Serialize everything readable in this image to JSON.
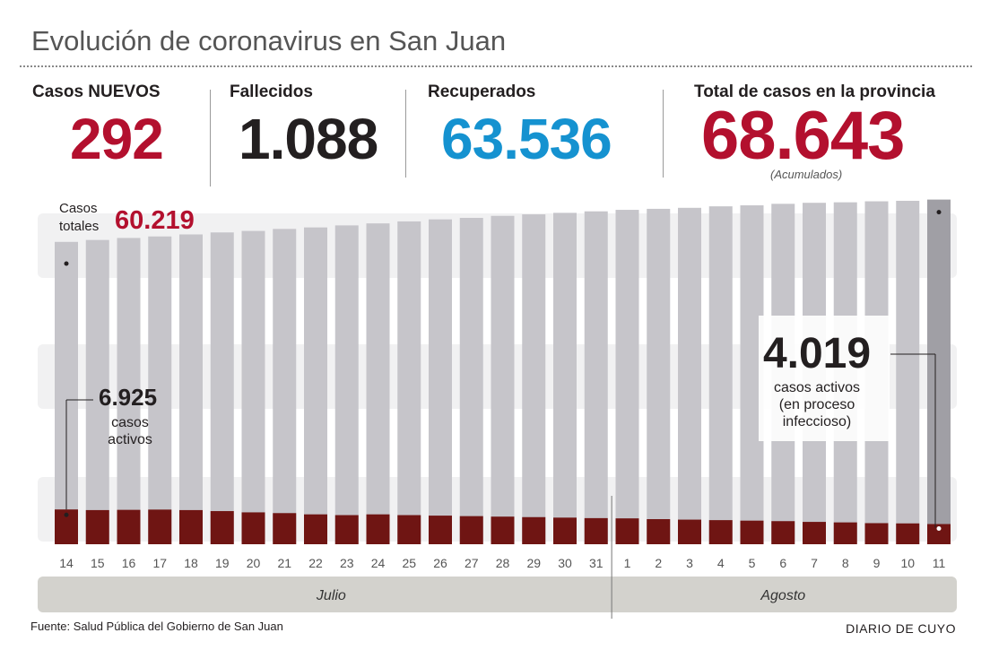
{
  "title": "Evolución de coronavirus en San Juan",
  "stats": {
    "new_cases": {
      "label": "Casos NUEVOS",
      "value": "292"
    },
    "deaths": {
      "label": "Fallecidos",
      "value": "1.088"
    },
    "recovered": {
      "label": "Recuperados",
      "value": "63.536"
    },
    "total": {
      "label": "Total de casos en la provincia",
      "value": "68.643",
      "note": "(Acumulados)"
    }
  },
  "colors": {
    "total_bar": "#c6c5ca",
    "last_bar": "#a09fa5",
    "active_bar": "#6f1513",
    "accent_red": "#b3102e",
    "accent_blue": "#1592d0",
    "band": "#f1f1f2"
  },
  "chart_data": {
    "type": "bar",
    "categories": [
      "14",
      "15",
      "16",
      "17",
      "18",
      "19",
      "20",
      "21",
      "22",
      "23",
      "24",
      "25",
      "26",
      "27",
      "28",
      "29",
      "30",
      "31",
      "1",
      "2",
      "3",
      "4",
      "5",
      "6",
      "7",
      "8",
      "9",
      "10",
      "11"
    ],
    "month_groups": [
      {
        "label": "Julio",
        "start": 0,
        "end": 17
      },
      {
        "label": "Agosto",
        "start": 18,
        "end": 28
      }
    ],
    "series": [
      {
        "name": "Casos totales",
        "values": [
          60219,
          60600,
          61000,
          61300,
          61700,
          62100,
          62400,
          62800,
          63100,
          63500,
          63900,
          64300,
          64700,
          65000,
          65400,
          65700,
          66000,
          66300,
          66600,
          66800,
          67000,
          67300,
          67500,
          67800,
          68000,
          68100,
          68300,
          68400,
          68643
        ]
      },
      {
        "name": "casos activos",
        "values": [
          6925,
          6800,
          6850,
          6900,
          6800,
          6600,
          6350,
          6200,
          5950,
          5800,
          5950,
          5800,
          5700,
          5600,
          5500,
          5400,
          5300,
          5200,
          5150,
          5000,
          4900,
          4800,
          4700,
          4600,
          4450,
          4350,
          4200,
          4150,
          4019
        ]
      }
    ],
    "annotations": {
      "total_label": "Casos\ntotales",
      "total_first_value": "60.219",
      "active_first_value": "6.925",
      "active_first_label": "casos\nactivos",
      "active_last_value": "4.019",
      "active_last_label": "casos activos\n(en proceso\ninfeccioso)"
    }
  },
  "footer": {
    "source": "Fuente: Salud Pública del Gobierno de San Juan",
    "credit": "DIARIO DE CUYO"
  }
}
